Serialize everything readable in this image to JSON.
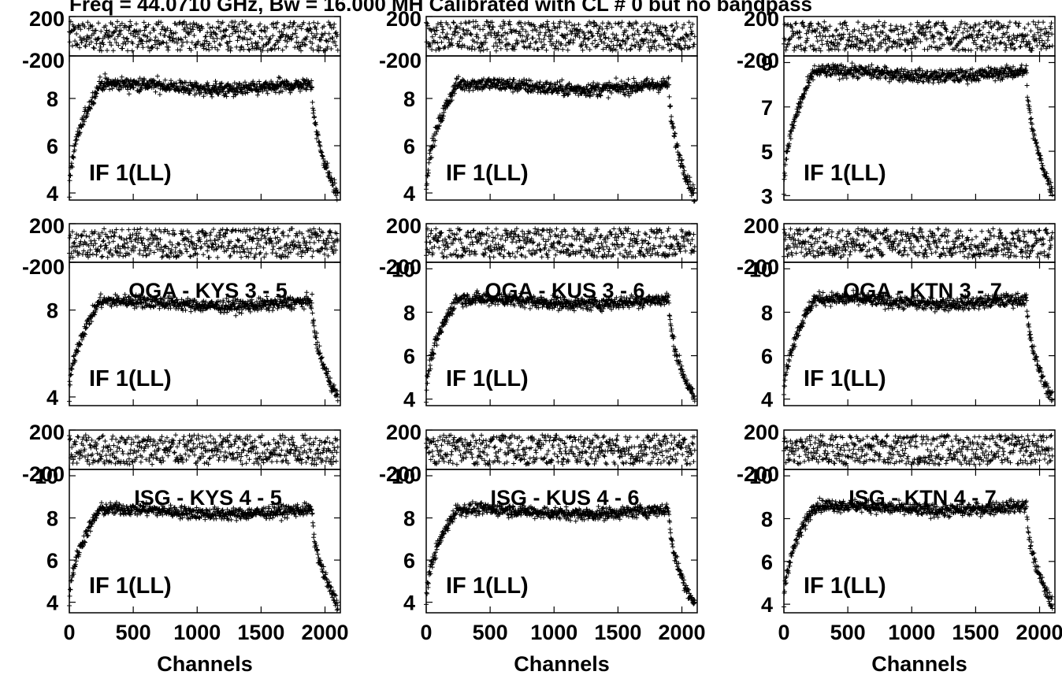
{
  "title": "Freq = 44.0710 GHz, Bw = 16.000 MH  Calibrated with CL # 0 but no bandpass",
  "xlabel": "Channels",
  "chart_data": [
    {
      "type": "scatter",
      "row": 1,
      "col": 1,
      "baseline_label": "",
      "if_label": "IF 1(LL)",
      "phase_ylim": [
        -200,
        200
      ],
      "phase_ticks": [
        200,
        -200
      ],
      "amp_ylim": [
        3.7,
        9.8
      ],
      "amp_ticks": [
        4,
        6,
        8
      ],
      "amp_plateau": 8.5,
      "amp_edge": 3.9,
      "x_ticks": [
        0,
        500,
        1000,
        1500,
        2000
      ],
      "show_x_labels": false
    },
    {
      "type": "scatter",
      "row": 1,
      "col": 2,
      "baseline_label": "",
      "if_label": "IF 1(LL)",
      "phase_ylim": [
        -200,
        200
      ],
      "phase_ticks": [
        200,
        -200
      ],
      "amp_ylim": [
        3.7,
        9.8
      ],
      "amp_ticks": [
        4,
        6,
        8
      ],
      "amp_plateau": 8.5,
      "amp_edge": 3.9,
      "x_ticks": [
        0,
        500,
        1000,
        1500,
        2000
      ],
      "show_x_labels": false
    },
    {
      "type": "scatter",
      "row": 1,
      "col": 3,
      "baseline_label": "",
      "if_label": "IF 1(LL)",
      "phase_ylim": [
        -200,
        200
      ],
      "phase_ticks": [
        200,
        -200
      ],
      "amp_ylim": [
        2.8,
        9.3
      ],
      "amp_ticks": [
        3,
        5,
        7,
        9
      ],
      "amp_plateau": 8.5,
      "amp_edge": 3.2,
      "x_ticks": [
        0,
        500,
        1000,
        1500,
        2000
      ],
      "show_x_labels": false
    },
    {
      "type": "scatter",
      "row": 2,
      "col": 1,
      "baseline_label": "OGA - KYS  3 - 5",
      "if_label": "IF 1(LL)",
      "phase_ylim": [
        -200,
        200
      ],
      "phase_ticks": [
        200,
        -200
      ],
      "amp_ylim": [
        3.6,
        10.2
      ],
      "amp_ticks": [
        4,
        8
      ],
      "amp_plateau": 8.3,
      "amp_edge": 4.0,
      "x_ticks": [
        0,
        500,
        1000,
        1500,
        2000
      ],
      "show_x_labels": false
    },
    {
      "type": "scatter",
      "row": 2,
      "col": 2,
      "baseline_label": "OGA - KUS  3 - 6",
      "if_label": "IF 1(LL)",
      "phase_ylim": [
        -200,
        200
      ],
      "phase_ticks": [
        200,
        -200
      ],
      "amp_ylim": [
        3.7,
        10.3
      ],
      "amp_ticks": [
        4,
        6,
        8,
        10
      ],
      "amp_plateau": 8.5,
      "amp_edge": 4.0,
      "x_ticks": [
        0,
        500,
        1000,
        1500,
        2000
      ],
      "show_x_labels": false
    },
    {
      "type": "scatter",
      "row": 2,
      "col": 3,
      "baseline_label": "OGA - KTN  3 - 7",
      "if_label": "IF 1(LL)",
      "phase_ylim": [
        -200,
        200
      ],
      "phase_ticks": [
        200,
        -200
      ],
      "amp_ylim": [
        3.7,
        10.3
      ],
      "amp_ticks": [
        4,
        6,
        8,
        10
      ],
      "amp_plateau": 8.5,
      "amp_edge": 4.0,
      "x_ticks": [
        0,
        500,
        1000,
        1500,
        2000
      ],
      "show_x_labels": false
    },
    {
      "type": "scatter",
      "row": 3,
      "col": 1,
      "baseline_label": "ISG - KYS   4 - 5",
      "if_label": "IF 1(LL)",
      "phase_ylim": [
        -200,
        200
      ],
      "phase_ticks": [
        200,
        -200
      ],
      "amp_ylim": [
        3.5,
        10.3
      ],
      "amp_ticks": [
        4,
        6,
        8,
        10
      ],
      "amp_plateau": 8.3,
      "amp_edge": 3.9,
      "x_ticks": [
        0,
        500,
        1000,
        1500,
        2000
      ],
      "show_x_labels": true
    },
    {
      "type": "scatter",
      "row": 3,
      "col": 2,
      "baseline_label": "ISG - KUS   4 - 6",
      "if_label": "IF 1(LL)",
      "phase_ylim": [
        -200,
        200
      ],
      "phase_ticks": [
        200,
        -200
      ],
      "amp_ylim": [
        3.5,
        10.3
      ],
      "amp_ticks": [
        4,
        6,
        8,
        10
      ],
      "amp_plateau": 8.3,
      "amp_edge": 3.9,
      "x_ticks": [
        0,
        500,
        1000,
        1500,
        2000
      ],
      "show_x_labels": true
    },
    {
      "type": "scatter",
      "row": 3,
      "col": 3,
      "baseline_label": "ISG - KTN   4 - 7",
      "if_label": "IF 1(LL)",
      "phase_ylim": [
        -200,
        200
      ],
      "phase_ticks": [
        200,
        -200
      ],
      "amp_ylim": [
        3.6,
        10.3
      ],
      "amp_ticks": [
        4,
        6,
        8,
        10
      ],
      "amp_plateau": 8.5,
      "amp_edge": 4.0,
      "x_ticks": [
        0,
        500,
        1000,
        1500,
        2000
      ],
      "show_x_labels": true
    }
  ]
}
